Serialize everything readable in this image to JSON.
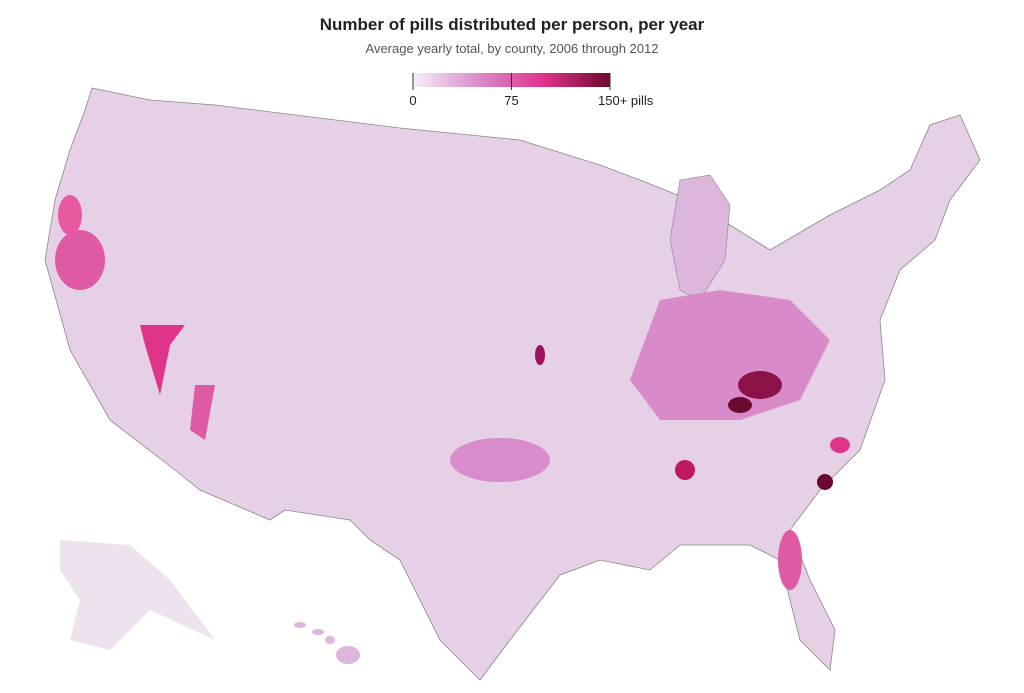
{
  "map": {
    "title": "Number of pills distributed per person, per year",
    "subtitle": "Average yearly total, by county, 2006 through 2012",
    "legend": {
      "range": [
        0,
        150
      ],
      "ticks": [
        0,
        75,
        {
          "value": 150,
          "label": "150+ pills"
        }
      ],
      "colors": [
        "#f6eef6",
        "#d98ccb",
        "#e0338a",
        "#6b0a2e"
      ]
    }
  }
}
